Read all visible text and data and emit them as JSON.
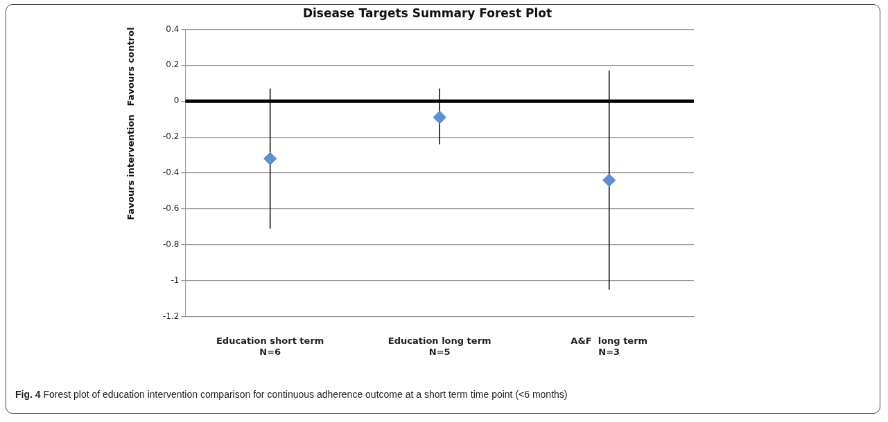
{
  "chart_data": {
    "type": "scatter",
    "title": "Disease Targets Summary Forest Plot",
    "categories": [
      "Education short term\nN=6",
      "Education long term\nN=5",
      "A&F  long term\nN=3"
    ],
    "series": [
      {
        "color": "#5b8fd9",
        "values": [
          -0.32,
          -0.09,
          -0.44
        ],
        "errors": [
          [
            -0.71,
            0.07
          ],
          [
            -0.24,
            0.07
          ],
          [
            -1.05,
            0.17
          ]
        ]
      }
    ],
    "ylim": [
      -1.2,
      0.4
    ],
    "yticks": [
      -1.2,
      -1,
      -0.8,
      -0.6,
      -0.4,
      -0.2,
      0,
      0.2,
      0.4
    ],
    "grid": "y",
    "marker": "diamond",
    "legend": false,
    "ref_lines": [
      {
        "axis": "y",
        "value": 0,
        "color": "#000000"
      }
    ],
    "annotations": [
      "Favours control",
      "Favours intervention",
      "Fig. 4 Forest plot of education intervention comparison for continuous adherence outcome at a short term time point (<6 months)"
    ]
  }
}
